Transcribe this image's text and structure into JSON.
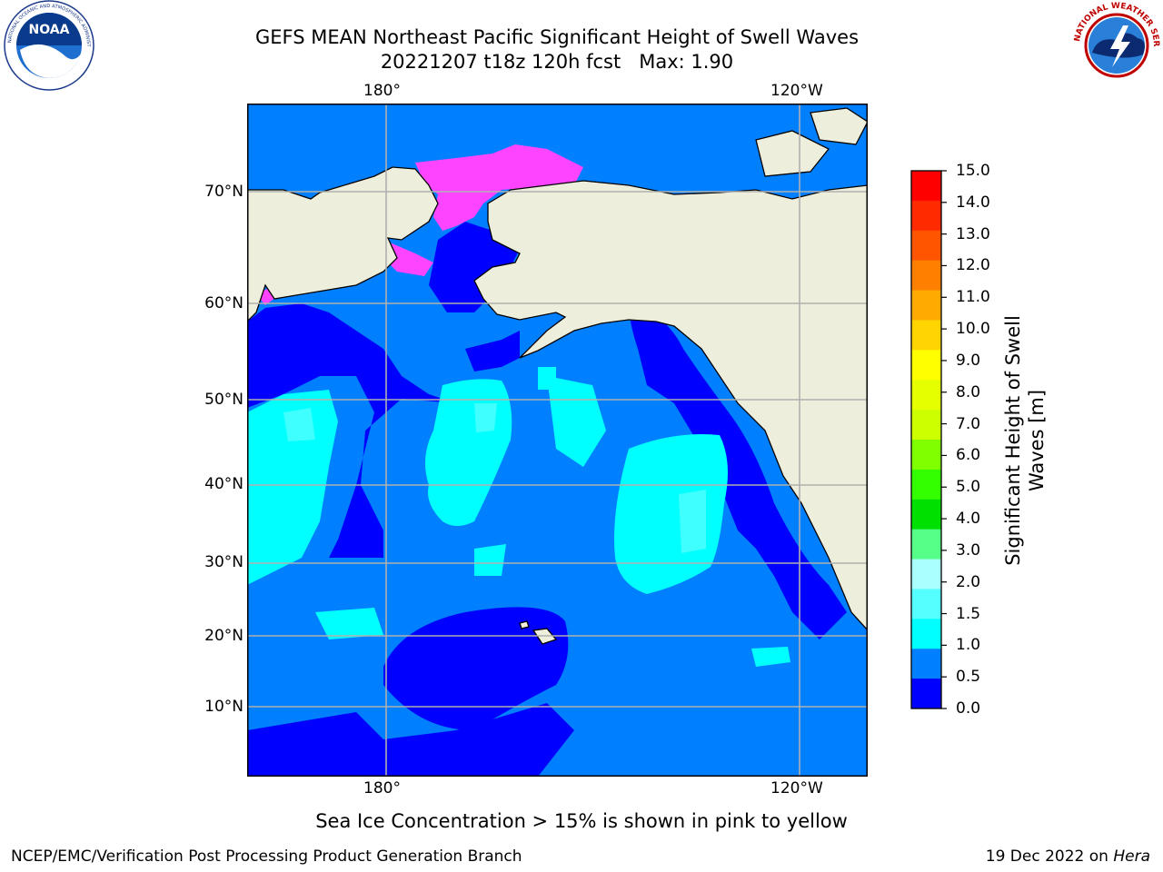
{
  "header": {
    "title_line1": "GEFS MEAN Northeast Pacific Significant Height of Swell Waves",
    "title_line2": "20221207 t18z 120h fcst   Max: 1.90"
  },
  "logos": {
    "left": {
      "name": "NOAA",
      "ring_text": "NATIONAL OCEANIC AND ATMOSPHERIC ADMINISTRATION · U.S. DEPARTMENT OF COMMERCE"
    },
    "right": {
      "name": "NATIONAL WEATHER SERVICE"
    }
  },
  "map": {
    "top_lon_labels": [
      "180°",
      "120°W"
    ],
    "bottom_lon_labels": [
      "180°",
      "120°W"
    ],
    "lat_labels": [
      "70°N",
      "60°N",
      "50°N",
      "40°N",
      "30°N",
      "20°N",
      "10°N"
    ],
    "colors": {
      "land": "#eeeedd",
      "ocean_0_05": "#0000ff",
      "ocean_05_10": "#0080ff",
      "ocean_10_15": "#00ffff",
      "ocean_15_20": "#40ffff",
      "sea_ice": "#ff44ff",
      "grid": "#b0b0b0"
    }
  },
  "colorbar": {
    "label_line1": "Significant Height of Swell",
    "label_line2": "Waves [m]",
    "ticks": [
      "15.0",
      "14.0",
      "13.0",
      "12.0",
      "11.0",
      "10.0",
      "9.0",
      "8.0",
      "7.0",
      "6.0",
      "5.0",
      "4.0",
      "3.0",
      "2.0",
      "1.5",
      "1.0",
      "0.5",
      "0.0"
    ],
    "colors": [
      "#ff0000",
      "#ff2a00",
      "#ff5500",
      "#ff8000",
      "#ffaa00",
      "#ffd400",
      "#ffff00",
      "#e6ff00",
      "#ccff00",
      "#80ff00",
      "#33ff00",
      "#00e000",
      "#55ff88",
      "#aaffff",
      "#55ffff",
      "#00ffff",
      "#0080ff",
      "#0000ff"
    ]
  },
  "note": "Sea Ice Concentration > 15% is shown in pink to yellow",
  "footer": {
    "left": "NCEP/EMC/Verification Post Processing Product Generation Branch",
    "right_prefix": "19 Dec 2022 on ",
    "right_host": "Hera"
  }
}
